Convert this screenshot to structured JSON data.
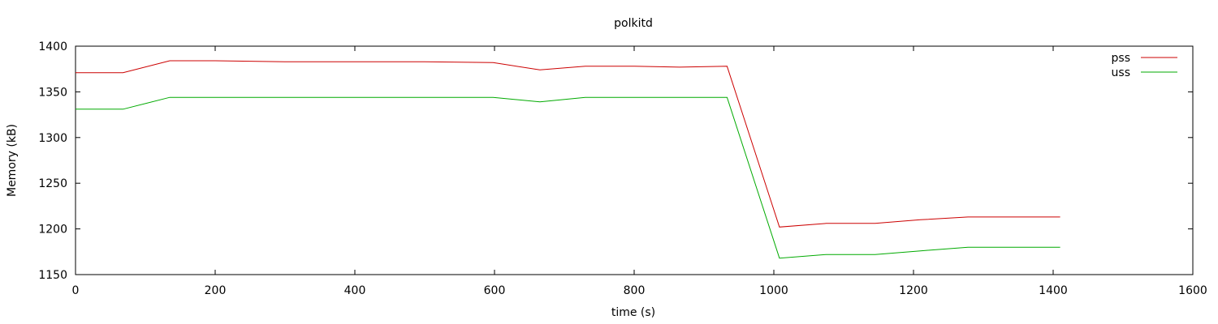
{
  "chart_data": {
    "type": "line",
    "title": "polkitd",
    "xlabel": "time (s)",
    "ylabel": "Memory (kB)",
    "xlim": [
      0,
      1600
    ],
    "ylim": [
      1150,
      1400
    ],
    "xticks": [
      0,
      200,
      400,
      600,
      800,
      1000,
      1200,
      1400,
      1600
    ],
    "yticks": [
      1150,
      1200,
      1250,
      1300,
      1350,
      1400
    ],
    "grid": false,
    "legend_position": "top-right",
    "series": [
      {
        "name": "pss",
        "color": "#cc0000",
        "x": [
          0,
          68,
          135,
          200,
          300,
          400,
          500,
          598,
          665,
          730,
          800,
          865,
          933,
          1008,
          1075,
          1145,
          1210,
          1278,
          1345,
          1410
        ],
        "y": [
          1371,
          1371,
          1384,
          1384,
          1383,
          1383,
          1383,
          1382,
          1374,
          1378,
          1378,
          1377,
          1378,
          1202,
          1206,
          1206,
          1210,
          1213,
          1213,
          1213
        ]
      },
      {
        "name": "uss",
        "color": "#00aa00",
        "x": [
          0,
          68,
          135,
          200,
          300,
          400,
          500,
          598,
          665,
          730,
          800,
          865,
          933,
          1008,
          1075,
          1145,
          1210,
          1278,
          1345,
          1410
        ],
        "y": [
          1331,
          1331,
          1344,
          1344,
          1344,
          1344,
          1344,
          1344,
          1339,
          1344,
          1344,
          1344,
          1344,
          1168,
          1172,
          1172,
          1176,
          1180,
          1180,
          1180
        ]
      }
    ]
  }
}
